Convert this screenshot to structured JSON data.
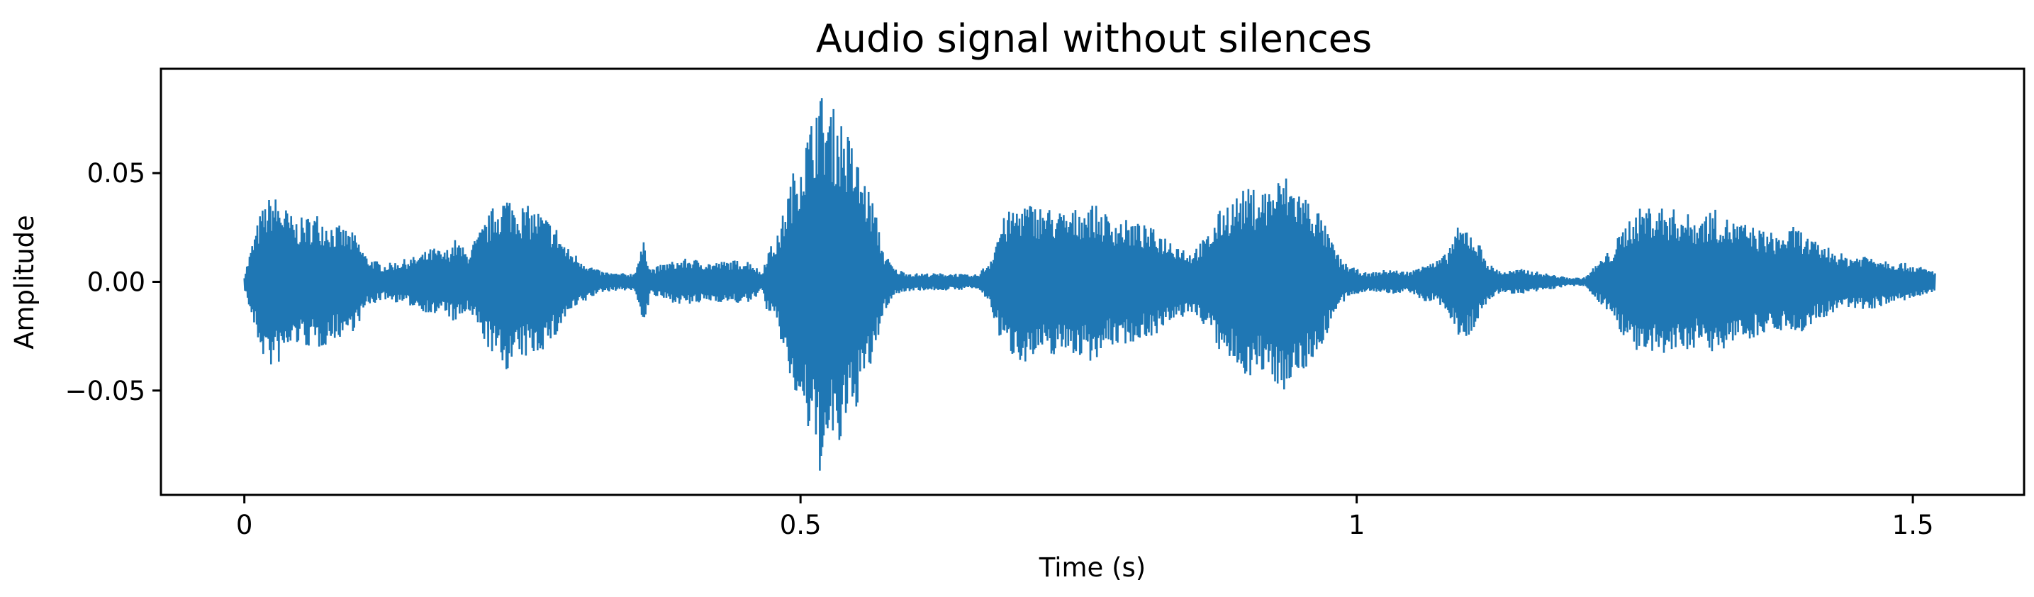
{
  "chart_data": {
    "type": "line",
    "title": "Audio signal without silences",
    "xlabel": "Time (s)",
    "ylabel": "Amplitude",
    "xlim": [
      -0.075,
      1.6
    ],
    "ylim": [
      -0.098,
      0.098
    ],
    "x_ticks": [
      {
        "value": 0,
        "label": "0"
      },
      {
        "value": 0.5,
        "label": "0.5"
      },
      {
        "value": 1,
        "label": "1"
      },
      {
        "value": 1.5,
        "label": "1.5"
      }
    ],
    "y_ticks": [
      {
        "value": 0.05,
        "label": "0.05"
      },
      {
        "value": 0.0,
        "label": "0.00"
      },
      {
        "value": -0.05,
        "label": "−0.05"
      }
    ],
    "grid": false,
    "legend": "none",
    "colors": {
      "series": "#1f77b4",
      "axes": "#000000"
    },
    "series": [
      {
        "x_start": 0.0,
        "x_end": 1.52,
        "envelope": [
          [
            0.0,
            0.003
          ],
          [
            0.008,
            0.02
          ],
          [
            0.015,
            0.033
          ],
          [
            0.025,
            0.041
          ],
          [
            0.035,
            0.036
          ],
          [
            0.045,
            0.029
          ],
          [
            0.055,
            0.03
          ],
          [
            0.065,
            0.032
          ],
          [
            0.08,
            0.027
          ],
          [
            0.09,
            0.025
          ],
          [
            0.1,
            0.022
          ],
          [
            0.11,
            0.012
          ],
          [
            0.125,
            0.008
          ],
          [
            0.14,
            0.01
          ],
          [
            0.155,
            0.012
          ],
          [
            0.17,
            0.016
          ],
          [
            0.18,
            0.014
          ],
          [
            0.19,
            0.02
          ],
          [
            0.2,
            0.014
          ],
          [
            0.21,
            0.022
          ],
          [
            0.225,
            0.036
          ],
          [
            0.235,
            0.041
          ],
          [
            0.25,
            0.036
          ],
          [
            0.265,
            0.033
          ],
          [
            0.28,
            0.026
          ],
          [
            0.29,
            0.016
          ],
          [
            0.3,
            0.012
          ],
          [
            0.31,
            0.008
          ],
          [
            0.32,
            0.005
          ],
          [
            0.335,
            0.004
          ],
          [
            0.35,
            0.004
          ],
          [
            0.36,
            0.02
          ],
          [
            0.365,
            0.006
          ],
          [
            0.38,
            0.009
          ],
          [
            0.4,
            0.011
          ],
          [
            0.42,
            0.009
          ],
          [
            0.44,
            0.01
          ],
          [
            0.455,
            0.01
          ],
          [
            0.465,
            0.004
          ],
          [
            0.47,
            0.014
          ],
          [
            0.48,
            0.022
          ],
          [
            0.49,
            0.045
          ],
          [
            0.5,
            0.062
          ],
          [
            0.51,
            0.075
          ],
          [
            0.515,
            0.09
          ],
          [
            0.525,
            0.082
          ],
          [
            0.535,
            0.078
          ],
          [
            0.545,
            0.066
          ],
          [
            0.555,
            0.051
          ],
          [
            0.565,
            0.038
          ],
          [
            0.575,
            0.014
          ],
          [
            0.585,
            0.006
          ],
          [
            0.6,
            0.004
          ],
          [
            0.62,
            0.004
          ],
          [
            0.64,
            0.004
          ],
          [
            0.655,
            0.003
          ],
          [
            0.66,
            0.004
          ],
          [
            0.67,
            0.01
          ],
          [
            0.68,
            0.028
          ],
          [
            0.69,
            0.034
          ],
          [
            0.7,
            0.037
          ],
          [
            0.72,
            0.035
          ],
          [
            0.74,
            0.032
          ],
          [
            0.76,
            0.037
          ],
          [
            0.78,
            0.03
          ],
          [
            0.8,
            0.028
          ],
          [
            0.82,
            0.024
          ],
          [
            0.84,
            0.018
          ],
          [
            0.85,
            0.014
          ],
          [
            0.865,
            0.021
          ],
          [
            0.88,
            0.036
          ],
          [
            0.9,
            0.043
          ],
          [
            0.92,
            0.044
          ],
          [
            0.935,
            0.05
          ],
          [
            0.945,
            0.045
          ],
          [
            0.955,
            0.04
          ],
          [
            0.965,
            0.034
          ],
          [
            0.975,
            0.022
          ],
          [
            0.985,
            0.011
          ],
          [
            0.995,
            0.007
          ],
          [
            1.01,
            0.004
          ],
          [
            1.03,
            0.006
          ],
          [
            1.04,
            0.005
          ],
          [
            1.05,
            0.005
          ],
          [
            1.06,
            0.01
          ],
          [
            1.07,
            0.009
          ],
          [
            1.08,
            0.013
          ],
          [
            1.09,
            0.025
          ],
          [
            1.1,
            0.026
          ],
          [
            1.11,
            0.018
          ],
          [
            1.12,
            0.008
          ],
          [
            1.13,
            0.005
          ],
          [
            1.15,
            0.006
          ],
          [
            1.17,
            0.004
          ],
          [
            1.19,
            0.002
          ],
          [
            1.205,
            0.002
          ],
          [
            1.215,
            0.008
          ],
          [
            1.23,
            0.016
          ],
          [
            1.245,
            0.03
          ],
          [
            1.26,
            0.036
          ],
          [
            1.275,
            0.035
          ],
          [
            1.29,
            0.033
          ],
          [
            1.305,
            0.03
          ],
          [
            1.32,
            0.034
          ],
          [
            1.335,
            0.029
          ],
          [
            1.35,
            0.027
          ],
          [
            1.365,
            0.024
          ],
          [
            1.38,
            0.022
          ],
          [
            1.395,
            0.026
          ],
          [
            1.41,
            0.019
          ],
          [
            1.425,
            0.016
          ],
          [
            1.44,
            0.012
          ],
          [
            1.46,
            0.013
          ],
          [
            1.48,
            0.01
          ],
          [
            1.5,
            0.008
          ],
          [
            1.52,
            0.005
          ]
        ]
      }
    ]
  }
}
